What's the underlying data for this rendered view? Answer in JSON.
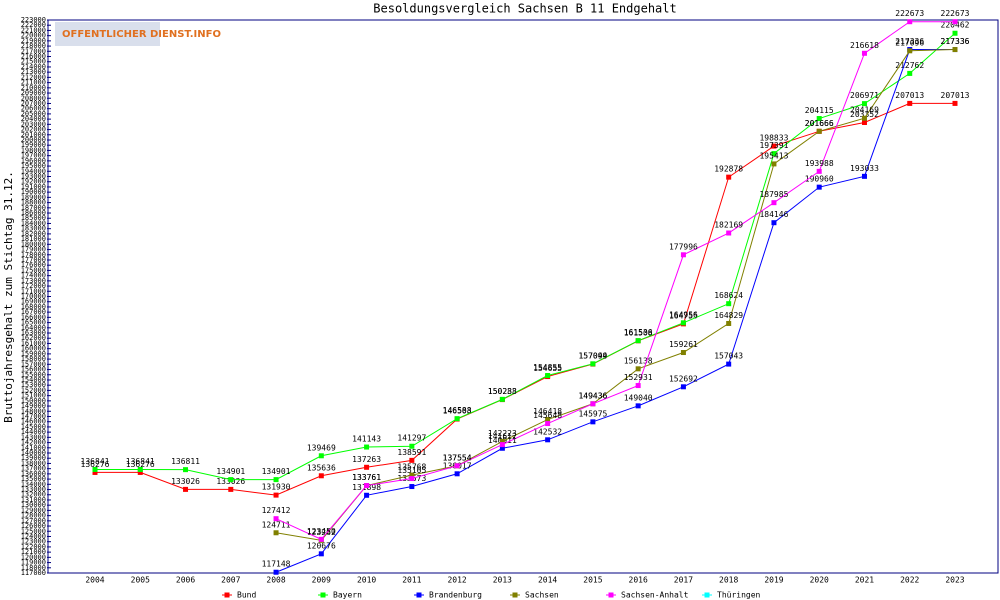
{
  "logo": "OFFENTLICHER DIENST.INFO",
  "chart_data": {
    "type": "line",
    "title": "Besoldungsvergleich Sachsen B 11 Endgehalt",
    "y_label": "Bruttojahresgehalt zum Stichtag 31.12.",
    "categories": [
      "2004",
      "2005",
      "2006",
      "2007",
      "2008",
      "2009",
      "2010",
      "2011",
      "2012",
      "2013",
      "2014",
      "2015",
      "2016",
      "2017",
      "2018",
      "2019",
      "2020",
      "2021",
      "2022",
      "2023"
    ],
    "series": [
      {
        "name": "Bund",
        "color": "#ff0000",
        "values": [
          136276,
          136276,
          133026,
          133026,
          131930,
          135636,
          137263,
          138591,
          146503,
          150238,
          154655,
          157044,
          161508,
          164755,
          192878,
          198833,
          201666,
          203352,
          207013,
          207013
        ]
      },
      {
        "name": "Bayern",
        "color": "#00ff00",
        "values": [
          136841,
          136841,
          136811,
          134901,
          134901,
          139469,
          141143,
          141297,
          146588,
          150283,
          154855,
          157099,
          161536,
          164956,
          168624,
          197391,
          204115,
          206971,
          212762,
          220462
        ]
      },
      {
        "name": "Brandenburg",
        "color": "#0000ff",
        "values": [
          null,
          null,
          null,
          null,
          117148,
          120676,
          131898,
          133573,
          136017,
          140911,
          142532,
          145975,
          149040,
          152692,
          157043,
          184146,
          190960,
          193033,
          217336,
          217336
        ]
      },
      {
        "name": "Sachsen",
        "color": "#808000",
        "values": [
          null,
          null,
          null,
          null,
          124711,
          123262,
          133761,
          135768,
          137554,
          142223,
          146418,
          149436,
          156138,
          159261,
          164829,
          195413,
          201666,
          204169,
          217096,
          217336
        ]
      },
      {
        "name": "Sachsen-Anhalt",
        "color": "#ff00ff",
        "values": [
          null,
          null,
          null,
          null,
          127412,
          123450,
          133761,
          135105,
          137554,
          141612,
          145648,
          149436,
          152931,
          177996,
          182169,
          187985,
          193988,
          216618,
          222673,
          222673
        ]
      },
      {
        "name": "Thüringen",
        "color": "#00ffff",
        "values": [
          null,
          null,
          null,
          null,
          null,
          null,
          null,
          null,
          null,
          null,
          null,
          null,
          null,
          null,
          null,
          null,
          null,
          null,
          null,
          null
        ]
      }
    ],
    "ylim": [
      117000,
      223000
    ],
    "yticks": [
      117000,
      118000,
      119000,
      120000,
      121000,
      122000,
      123000,
      124000,
      125000,
      126000,
      127000,
      128000,
      129000,
      130000,
      131000,
      132000,
      133000,
      134000,
      135000,
      136000,
      137000,
      138000,
      139000,
      140000,
      141000,
      142000,
      143000,
      144000,
      145000,
      146000,
      147000,
      148000,
      149000,
      150000,
      151000,
      152000,
      153000,
      154000,
      155000,
      156000,
      157000,
      158000,
      159000,
      160000,
      161000,
      162000,
      163000,
      164000,
      165000,
      166000,
      167000,
      168000,
      169000,
      170000,
      171000,
      172000,
      173000,
      174000,
      175000,
      176000,
      177000,
      178000,
      179000,
      180000,
      181000,
      182000,
      183000,
      184000,
      185000,
      186000,
      187000,
      188000,
      189000,
      190000,
      191000,
      192000,
      193000,
      194000,
      195000,
      196000,
      197000,
      198000,
      199000,
      200000,
      201000,
      202000,
      203000,
      204000,
      205000,
      206000,
      207000,
      208000,
      209000,
      210000,
      211000,
      212000,
      213000,
      214000,
      215000,
      216000,
      217000,
      218000,
      219000,
      220000,
      221000,
      222000,
      223000
    ],
    "legend": "bottom"
  }
}
